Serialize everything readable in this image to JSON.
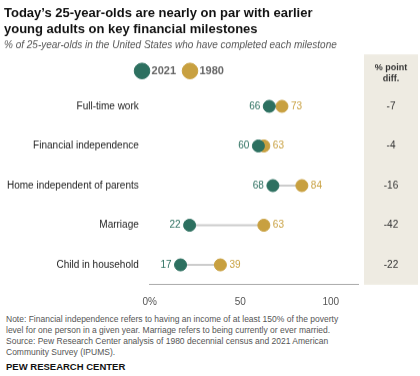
{
  "chart_data": {
    "type": "dumbbell",
    "title": "Today’s 25-year-olds are nearly on par with earlier\nyoung adults on key financial milestones",
    "subtitle": "% of 25-year-olds in the United States who have completed each milestone",
    "categories": [
      "Full-time work",
      "Financial independence",
      "Home independent of parents",
      "Marriage",
      "Child in household"
    ],
    "series": [
      {
        "name": "2021",
        "color": "#2d7060",
        "values": [
          66,
          60,
          68,
          22,
          17
        ]
      },
      {
        "name": "1980",
        "color": "#c8a040",
        "values": [
          73,
          63,
          84,
          63,
          39
        ]
      }
    ],
    "diff": {
      "label": "% point\ndiff.",
      "values": [
        -7,
        -4,
        -16,
        -42,
        -22
      ]
    },
    "xlim": [
      0,
      115
    ],
    "xticks": [
      {
        "value": 0,
        "label": "0%"
      },
      50,
      100
    ],
    "grid": false,
    "legend": "top",
    "data_labels": true,
    "note": "Note: Financial independence refers to having an income of at least 150% of the poverty\nlevel for one person in a given year. Marriage refers to being currently or ever married.\nSource: Pew Research Center analysis of 1980 decennial census and 2021 American\nCommunity Survey (IPUMS).",
    "source": "PEW RESEARCH CENTER"
  }
}
